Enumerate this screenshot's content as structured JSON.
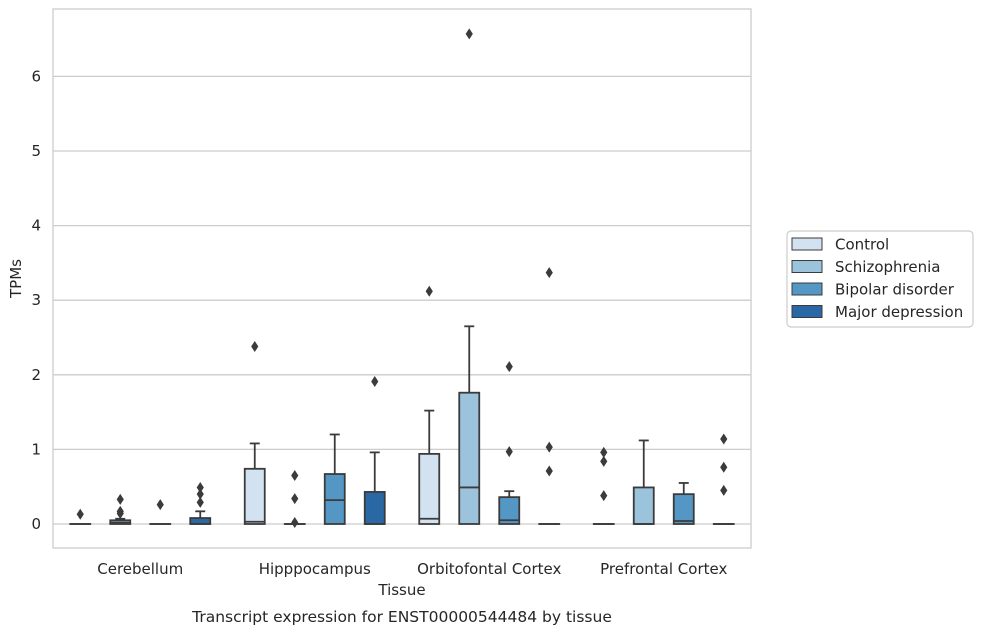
{
  "chart_data": {
    "type": "box",
    "xlabel": "Tissue",
    "ylabel": "TPMs",
    "caption": "Transcript expression for ENST00000544484 by tissue",
    "ylim": [
      -0.32,
      6.9
    ],
    "yticks": [
      0,
      1,
      2,
      3,
      4,
      5,
      6
    ],
    "grid": "horizontal",
    "legend_position": "right",
    "categories": [
      "Cerebellum",
      "Hipppocampus",
      "Orbitofontal Cortex",
      "Prefrontal Cortex"
    ],
    "series": [
      {
        "name": "Control",
        "color": "#d2e2f1",
        "boxes": [
          {
            "q1": 0,
            "median": 0,
            "q3": 0,
            "wl": 0,
            "wh": 0,
            "outliers": [
              0.13
            ]
          },
          {
            "q1": 0,
            "median": 0.03,
            "q3": 0.74,
            "wl": 0,
            "wh": 1.08,
            "outliers": [
              2.38
            ]
          },
          {
            "q1": 0,
            "median": 0.07,
            "q3": 0.94,
            "wl": 0,
            "wh": 1.52,
            "outliers": [
              3.12
            ]
          },
          {
            "q1": 0,
            "median": 0,
            "q3": 0,
            "wl": 0,
            "wh": 0,
            "outliers": [
              0.38,
              0.84,
              0.96
            ]
          }
        ]
      },
      {
        "name": "Schizophrenia",
        "color": "#9cc3dc",
        "boxes": [
          {
            "q1": 0,
            "median": 0.02,
            "q3": 0.05,
            "wl": 0,
            "wh": 0.07,
            "outliers": [
              0.14,
              0.17,
              0.33
            ]
          },
          {
            "q1": 0,
            "median": 0,
            "q3": 0,
            "wl": 0,
            "wh": 0,
            "outliers": [
              0.02,
              0.34,
              0.65
            ]
          },
          {
            "q1": 0,
            "median": 0.49,
            "q3": 1.76,
            "wl": 0,
            "wh": 2.65,
            "outliers": [
              6.57
            ]
          },
          {
            "q1": 0,
            "median": 0,
            "q3": 0.49,
            "wl": 0,
            "wh": 1.12,
            "outliers": []
          }
        ]
      },
      {
        "name": "Bipolar disorder",
        "color": "#5497c5",
        "boxes": [
          {
            "q1": 0,
            "median": 0,
            "q3": 0,
            "wl": 0,
            "wh": 0,
            "outliers": [
              0.26
            ]
          },
          {
            "q1": 0,
            "median": 0.32,
            "q3": 0.67,
            "wl": 0,
            "wh": 1.2,
            "outliers": []
          },
          {
            "q1": 0,
            "median": 0.05,
            "q3": 0.36,
            "wl": 0,
            "wh": 0.44,
            "outliers": [
              0.97,
              2.11
            ]
          },
          {
            "q1": 0,
            "median": 0.04,
            "q3": 0.4,
            "wl": 0,
            "wh": 0.55,
            "outliers": []
          }
        ]
      },
      {
        "name": "Major depression",
        "color": "#2a67a5",
        "boxes": [
          {
            "q1": 0,
            "median": 0,
            "q3": 0.08,
            "wl": 0,
            "wh": 0.17,
            "outliers": [
              0.29,
              0.4,
              0.49
            ]
          },
          {
            "q1": 0,
            "median": 0,
            "q3": 0.43,
            "wl": 0,
            "wh": 0.96,
            "outliers": [
              1.91
            ]
          },
          {
            "q1": 0,
            "median": 0,
            "q3": 0,
            "wl": 0,
            "wh": 0,
            "outliers": [
              0.71,
              1.03,
              3.37
            ]
          },
          {
            "q1": 0,
            "median": 0,
            "q3": 0,
            "wl": 0,
            "wh": 0,
            "outliers": [
              0.45,
              0.76,
              1.14
            ]
          }
        ]
      }
    ]
  }
}
